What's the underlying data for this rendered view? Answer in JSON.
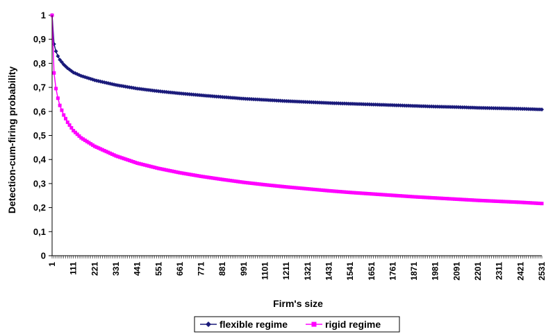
{
  "chart_data": {
    "type": "line",
    "title": "",
    "xlabel": "Firm's size",
    "ylabel": "Detection-cum-firing probability",
    "ylim": [
      0,
      1
    ],
    "xlim": [
      1,
      2531
    ],
    "y_ticks": [
      "0",
      "0,1",
      "0,2",
      "0,3",
      "0,4",
      "0,5",
      "0,6",
      "0,7",
      "0,8",
      "0,9",
      "1"
    ],
    "x_ticks": [
      "1",
      "111",
      "221",
      "331",
      "441",
      "551",
      "661",
      "771",
      "881",
      "991",
      "1101",
      "1211",
      "1321",
      "1431",
      "1541",
      "1651",
      "1761",
      "1871",
      "1981",
      "2091",
      "2201",
      "2311",
      "2421",
      "2531"
    ],
    "grid": false,
    "legend_position": "bottom-center",
    "series": [
      {
        "name": "flexible regime",
        "color": "#1a1a7a",
        "marker": "diamond",
        "x": [
          1,
          11,
          21,
          31,
          41,
          61,
          81,
          111,
          151,
          221,
          331,
          441,
          551,
          661,
          771,
          881,
          991,
          1101,
          1211,
          1321,
          1431,
          1541,
          1651,
          1761,
          1871,
          1981,
          2091,
          2201,
          2311,
          2421,
          2531
        ],
        "y": [
          1.0,
          0.88,
          0.85,
          0.83,
          0.815,
          0.795,
          0.78,
          0.762,
          0.748,
          0.73,
          0.71,
          0.695,
          0.684,
          0.675,
          0.667,
          0.66,
          0.653,
          0.648,
          0.643,
          0.639,
          0.635,
          0.632,
          0.629,
          0.626,
          0.623,
          0.62,
          0.618,
          0.615,
          0.613,
          0.611,
          0.608
        ]
      },
      {
        "name": "rigid regime",
        "color": "#ff00ff",
        "marker": "square",
        "x": [
          1,
          11,
          21,
          31,
          41,
          61,
          81,
          111,
          151,
          221,
          331,
          441,
          551,
          661,
          771,
          881,
          991,
          1101,
          1211,
          1321,
          1431,
          1541,
          1651,
          1761,
          1871,
          1981,
          2091,
          2201,
          2311,
          2421,
          2531
        ],
        "y": [
          1.0,
          0.76,
          0.695,
          0.655,
          0.625,
          0.585,
          0.555,
          0.52,
          0.49,
          0.455,
          0.415,
          0.385,
          0.363,
          0.345,
          0.33,
          0.317,
          0.305,
          0.295,
          0.286,
          0.278,
          0.27,
          0.263,
          0.257,
          0.251,
          0.245,
          0.24,
          0.235,
          0.23,
          0.226,
          0.222,
          0.217
        ]
      }
    ]
  }
}
